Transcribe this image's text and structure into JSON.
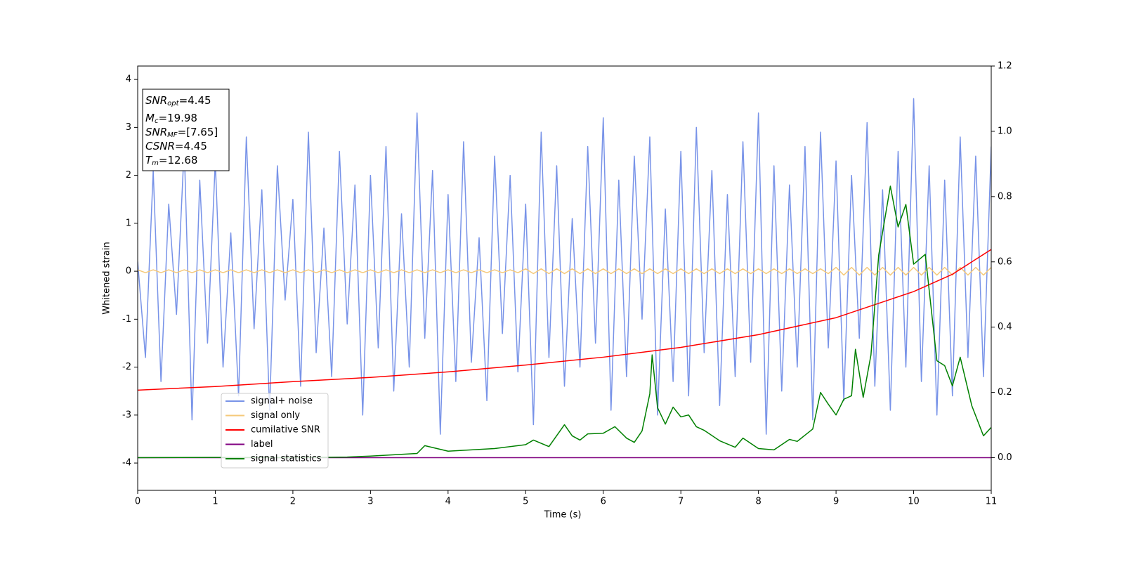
{
  "chart_data": {
    "type": "line",
    "xlabel": "Time (s)",
    "ylabel": "Whitened strain",
    "xlim": [
      0,
      11
    ],
    "xticks": [
      0,
      1,
      2,
      3,
      4,
      5,
      6,
      7,
      8,
      9,
      10,
      11
    ],
    "ylim": [
      -4.57,
      4.28
    ],
    "yticks": [
      -4,
      -3,
      -2,
      -1,
      0,
      1,
      2,
      3,
      4
    ],
    "y2lim": [
      -0.1,
      1.2
    ],
    "y2ticks": [
      {
        "value": 0,
        "label": "0.0"
      },
      {
        "value": 0.2,
        "label": "0.2"
      },
      {
        "value": 0.4,
        "label": "0.4"
      },
      {
        "value": 0.6,
        "label": "0.6"
      },
      {
        "value": 0.8,
        "label": "0.8"
      },
      {
        "value": 1.0,
        "label": "1.0"
      },
      {
        "value": 1.2,
        "label": "1.2"
      }
    ],
    "legend_loc": "lower left",
    "annotation": [
      {
        "var": "SNR",
        "sub": "opt",
        "value": "=4.45"
      },
      {
        "var": "M",
        "sub": "c",
        "value": "=19.98"
      },
      {
        "var": "SNR",
        "sub": "MF",
        "value": "=[7.65]"
      },
      {
        "var": "CSNR",
        "sub": null,
        "value": "=4.45"
      },
      {
        "var": "T",
        "sub": "m",
        "value": "=12.68"
      }
    ],
    "series": [
      {
        "name": "signal+ noise",
        "color": "#7893e8",
        "axis": "y",
        "x": [
          0,
          0.1,
          0.2,
          0.3,
          0.4,
          0.5,
          0.6,
          0.7,
          0.8,
          0.9,
          1,
          1.1,
          1.2,
          1.3,
          1.4,
          1.5,
          1.6,
          1.7,
          1.8,
          1.9,
          2,
          2.1,
          2.2,
          2.3,
          2.4,
          2.5,
          2.6,
          2.7,
          2.8,
          2.9,
          3,
          3.1,
          3.2,
          3.3,
          3.4,
          3.5,
          3.6,
          3.7,
          3.8,
          3.9,
          4,
          4.1,
          4.2,
          4.3,
          4.4,
          4.5,
          4.6,
          4.7,
          4.8,
          4.9,
          5,
          5.1,
          5.2,
          5.3,
          5.4,
          5.5,
          5.6,
          5.7,
          5.8,
          5.9,
          6,
          6.1,
          6.2,
          6.3,
          6.4,
          6.5,
          6.6,
          6.7,
          6.8,
          6.9,
          7,
          7.1,
          7.2,
          7.3,
          7.4,
          7.5,
          7.6,
          7.7,
          7.8,
          7.9,
          8,
          8.1,
          8.2,
          8.3,
          8.4,
          8.5,
          8.6,
          8.7,
          8.8,
          8.9,
          9,
          9.1,
          9.2,
          9.3,
          9.4,
          9.5,
          9.6,
          9.7,
          9.8,
          9.9,
          10,
          10.1,
          10.2,
          10.3,
          10.4,
          10.5,
          10.6,
          10.7,
          10.8,
          10.9,
          11
        ],
        "values": [
          0.2,
          -1.8,
          2.1,
          -2.3,
          1.4,
          -0.9,
          2.6,
          -3.1,
          1.9,
          -1.5,
          2.3,
          -2.0,
          0.8,
          -2.6,
          2.8,
          -1.2,
          1.7,
          -2.9,
          2.2,
          -0.6,
          1.5,
          -2.4,
          2.9,
          -1.7,
          0.9,
          -2.2,
          2.5,
          -1.1,
          1.8,
          -3.0,
          2.0,
          -1.6,
          2.6,
          -2.5,
          1.2,
          -2.0,
          3.3,
          -1.4,
          2.1,
          -3.4,
          1.6,
          -2.3,
          2.7,
          -1.9,
          0.7,
          -2.7,
          2.4,
          -1.3,
          2.0,
          -2.1,
          1.4,
          -3.2,
          2.9,
          -1.8,
          2.2,
          -2.4,
          1.1,
          -2.0,
          2.6,
          -1.5,
          3.2,
          -2.9,
          1.9,
          -2.2,
          2.4,
          -1.0,
          2.8,
          -3.0,
          1.3,
          -2.3,
          2.5,
          -2.6,
          3.0,
          -1.7,
          2.1,
          -2.8,
          1.6,
          -2.2,
          2.7,
          -1.9,
          3.3,
          -3.4,
          2.2,
          -2.5,
          1.8,
          -2.0,
          2.6,
          -3.1,
          2.9,
          -1.6,
          2.3,
          -2.7,
          2.0,
          -1.4,
          3.1,
          -2.4,
          1.7,
          -2.9,
          2.5,
          -2.0,
          3.6,
          -2.3,
          2.2,
          -3.0,
          1.9,
          -2.6,
          2.8,
          -1.8,
          2.4,
          -2.2,
          2.6
        ]
      },
      {
        "name": "signal only",
        "color": "#f5c97a",
        "axis": "y",
        "x": [
          0,
          0.1,
          0.2,
          0.3,
          0.4,
          0.5,
          0.6,
          0.7,
          0.8,
          0.9,
          1,
          1.1,
          1.2,
          1.3,
          1.4,
          1.5,
          1.6,
          1.7,
          1.8,
          1.9,
          2,
          2.1,
          2.2,
          2.3,
          2.4,
          2.5,
          2.6,
          2.7,
          2.8,
          2.9,
          3,
          3.1,
          3.2,
          3.3,
          3.4,
          3.5,
          3.6,
          3.7,
          3.8,
          3.9,
          4,
          4.1,
          4.2,
          4.3,
          4.4,
          4.5,
          4.6,
          4.7,
          4.8,
          4.9,
          5,
          5.1,
          5.2,
          5.3,
          5.4,
          5.5,
          5.6,
          5.7,
          5.8,
          5.9,
          6,
          6.1,
          6.2,
          6.3,
          6.4,
          6.5,
          6.6,
          6.7,
          6.8,
          6.9,
          7,
          7.1,
          7.2,
          7.3,
          7.4,
          7.5,
          7.6,
          7.7,
          7.8,
          7.9,
          8,
          8.1,
          8.2,
          8.3,
          8.4,
          8.5,
          8.6,
          8.7,
          8.8,
          8.9,
          9,
          9.1,
          9.2,
          9.3,
          9.4,
          9.5,
          9.6,
          9.7,
          9.8,
          9.9,
          10,
          10.1,
          10.2,
          10.3,
          10.4,
          10.5,
          10.6,
          10.7,
          10.8,
          10.9,
          11
        ],
        "values": [
          0.03,
          -0.03,
          0.03,
          -0.03,
          0.03,
          -0.03,
          0.03,
          -0.03,
          0.03,
          -0.03,
          0.03,
          -0.03,
          0.03,
          -0.03,
          0.03,
          -0.03,
          0.03,
          -0.03,
          0.03,
          -0.03,
          0.03,
          -0.03,
          0.03,
          -0.03,
          0.03,
          -0.03,
          0.03,
          -0.03,
          0.03,
          -0.03,
          0.03,
          -0.03,
          0.03,
          -0.03,
          0.03,
          -0.03,
          0.03,
          -0.03,
          0.03,
          -0.03,
          0.03,
          -0.03,
          0.03,
          -0.03,
          0.03,
          -0.03,
          0.03,
          -0.03,
          0.03,
          -0.03,
          0.05,
          -0.05,
          0.05,
          -0.05,
          0.05,
          -0.05,
          0.05,
          -0.05,
          0.05,
          -0.05,
          0.05,
          -0.05,
          0.05,
          -0.05,
          0.05,
          -0.05,
          0.05,
          -0.05,
          0.05,
          -0.05,
          0.05,
          -0.05,
          0.05,
          -0.05,
          0.05,
          -0.05,
          0.05,
          -0.05,
          0.05,
          -0.05,
          0.05,
          -0.05,
          0.05,
          -0.05,
          0.05,
          -0.05,
          0.05,
          -0.05,
          0.05,
          -0.05,
          0.08,
          -0.08,
          0.08,
          -0.08,
          0.08,
          -0.08,
          0.08,
          -0.08,
          0.08,
          -0.08,
          0.08,
          -0.08,
          0.08,
          -0.08,
          0.08,
          -0.08,
          0.08,
          -0.08,
          0.08,
          -0.08,
          0.08
        ]
      },
      {
        "name": "cumilative SNR",
        "color": "#ff0000",
        "axis": "y2",
        "x": [
          0,
          1,
          2,
          3,
          4,
          5,
          6,
          7,
          8,
          9,
          10,
          10.5,
          11
        ],
        "values": [
          0.207,
          0.218,
          0.233,
          0.246,
          0.263,
          0.284,
          0.308,
          0.338,
          0.377,
          0.429,
          0.509,
          0.562,
          0.638
        ]
      },
      {
        "name": "label",
        "color": "#800080",
        "axis": "y2",
        "x": [
          0,
          11
        ],
        "values": [
          0,
          0
        ]
      },
      {
        "name": "signal statistics",
        "color": "#008000",
        "axis": "y2",
        "x": [
          0,
          1,
          2,
          2.7,
          3,
          3.6,
          3.7,
          4,
          4.6,
          5,
          5.1,
          5.3,
          5.5,
          5.6,
          5.7,
          5.8,
          6.0,
          6.15,
          6.3,
          6.4,
          6.5,
          6.6,
          6.63,
          6.7,
          6.8,
          6.9,
          7,
          7.1,
          7.2,
          7.3,
          7.5,
          7.7,
          7.8,
          8,
          8.2,
          8.4,
          8.5,
          8.7,
          8.8,
          8.9,
          9.0,
          9.1,
          9.2,
          9.25,
          9.35,
          9.45,
          9.55,
          9.7,
          9.8,
          9.9,
          10.0,
          10.15,
          10.3,
          10.4,
          10.5,
          10.6,
          10.75,
          10.9,
          11
        ],
        "values": [
          0,
          0.001,
          0,
          0.002,
          0.005,
          0.013,
          0.037,
          0.02,
          0.028,
          0.04,
          0.054,
          0.034,
          0.101,
          0.067,
          0.054,
          0.073,
          0.075,
          0.095,
          0.06,
          0.047,
          0.082,
          0.196,
          0.315,
          0.153,
          0.103,
          0.155,
          0.125,
          0.131,
          0.095,
          0.084,
          0.052,
          0.032,
          0.06,
          0.028,
          0.024,
          0.056,
          0.05,
          0.088,
          0.2,
          0.164,
          0.131,
          0.179,
          0.19,
          0.332,
          0.185,
          0.315,
          0.621,
          0.832,
          0.707,
          0.776,
          0.593,
          0.623,
          0.297,
          0.282,
          0.22,
          0.308,
          0.159,
          0.067,
          0.093
        ]
      }
    ]
  }
}
